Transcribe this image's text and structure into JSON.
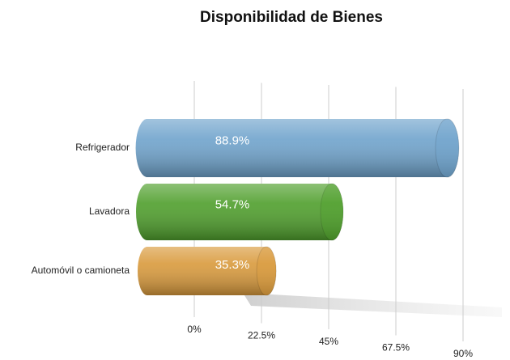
{
  "chart_data": {
    "type": "bar",
    "orientation": "horizontal",
    "title": "Disponibilidad de Bienes",
    "categories": [
      "Refrigerador",
      "Lavadora",
      "Automóvil o camioneta"
    ],
    "values": [
      88.9,
      54.7,
      35.3
    ],
    "value_labels": [
      "88.9%",
      "54.7%",
      "35.3%"
    ],
    "colors": [
      "#6fa3cc",
      "#4f9f2c",
      "#d99a3c"
    ],
    "xlim": [
      0,
      90
    ],
    "xticks": [
      {
        "value": 0,
        "label": "0%"
      },
      {
        "value": 22.5,
        "label": "22.5%"
      },
      {
        "value": 45,
        "label": "45%"
      },
      {
        "value": 67.5,
        "label": "67.5%"
      },
      {
        "value": 90,
        "label": "90%"
      }
    ],
    "grid": true
  }
}
